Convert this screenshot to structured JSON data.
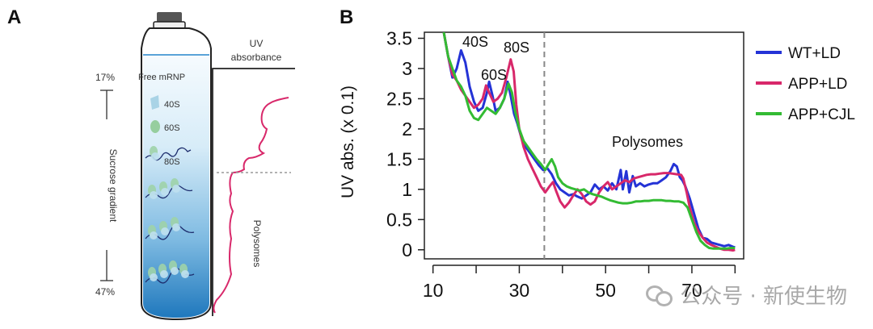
{
  "panelA": {
    "letter": "A",
    "uv_title_line1": "UV",
    "uv_title_line2": "absorbance",
    "top_percent": "17%",
    "bottom_percent": "47%",
    "gradient_label": "Sucrose gradient",
    "free_mrnp": "Free mRNP",
    "label_40s": "40S",
    "label_60s": "60S",
    "label_80s": "80S",
    "polysomes_label": "Polysomes",
    "trace_color": "#d8286a",
    "tube_blue": "#2f86c5"
  },
  "panelB": {
    "letter": "B",
    "ann_40s": "40S",
    "ann_60s": "60S",
    "ann_80s": "80S",
    "ann_polysomes": "Polysomes"
  },
  "watermark": "公众号 · 新使生物",
  "chart_data": {
    "type": "line",
    "title": "",
    "xlabel": "",
    "ylabel": "UV abs. (x 0.1)",
    "xlim": [
      8,
      82
    ],
    "ylim": [
      -0.15,
      3.6
    ],
    "x_ticks": [
      10,
      30,
      50,
      70
    ],
    "y_ticks": [
      0,
      0.5,
      1,
      1.5,
      2,
      2.5,
      3,
      3.5
    ],
    "y_tick_labels": [
      "0",
      "0.5",
      "1",
      "1.5",
      "2",
      "2.5",
      "3",
      "3.5"
    ],
    "vline_x": 35.8,
    "legend_position": "right",
    "series": [
      {
        "name": "WT+LD",
        "color": "#2433d6",
        "points": [
          [
            12.5,
            3.6
          ],
          [
            13.5,
            3.2
          ],
          [
            14.5,
            2.85
          ],
          [
            15.5,
            3.0
          ],
          [
            16.5,
            3.3
          ],
          [
            17.5,
            3.1
          ],
          [
            18.5,
            2.7
          ],
          [
            19.5,
            2.45
          ],
          [
            20.5,
            2.3
          ],
          [
            21.5,
            2.35
          ],
          [
            22.5,
            2.6
          ],
          [
            23.0,
            2.78
          ],
          [
            23.8,
            2.55
          ],
          [
            24.5,
            2.3
          ],
          [
            25.5,
            2.35
          ],
          [
            26.5,
            2.5
          ],
          [
            27.3,
            2.78
          ],
          [
            28.0,
            2.55
          ],
          [
            28.8,
            2.25
          ],
          [
            29.5,
            2.1
          ],
          [
            30.5,
            1.85
          ],
          [
            31.5,
            1.7
          ],
          [
            32.5,
            1.6
          ],
          [
            33.5,
            1.5
          ],
          [
            34.5,
            1.4
          ],
          [
            35.5,
            1.32
          ],
          [
            36.5,
            1.35
          ],
          [
            37.5,
            1.25
          ],
          [
            38.5,
            1.1
          ],
          [
            39.5,
            1.0
          ],
          [
            40.5,
            0.95
          ],
          [
            41.5,
            0.9
          ],
          [
            42.5,
            0.92
          ],
          [
            43.5,
            0.88
          ],
          [
            44.5,
            0.85
          ],
          [
            45.5,
            0.9
          ],
          [
            46.5,
            0.95
          ],
          [
            47.5,
            1.08
          ],
          [
            48.5,
            1.0
          ],
          [
            49.5,
            1.05
          ],
          [
            50.5,
            0.98
          ],
          [
            51.5,
            1.1
          ],
          [
            52.5,
            1.0
          ],
          [
            53.5,
            1.32
          ],
          [
            54.0,
            1.0
          ],
          [
            54.8,
            1.3
          ],
          [
            55.5,
            0.95
          ],
          [
            56.3,
            1.22
          ],
          [
            57.0,
            1.05
          ],
          [
            58.0,
            1.1
          ],
          [
            59.0,
            1.05
          ],
          [
            60.0,
            1.08
          ],
          [
            61.0,
            1.1
          ],
          [
            62.0,
            1.1
          ],
          [
            63.0,
            1.15
          ],
          [
            64.0,
            1.2
          ],
          [
            65.0,
            1.3
          ],
          [
            65.8,
            1.42
          ],
          [
            66.5,
            1.38
          ],
          [
            67.2,
            1.2
          ],
          [
            67.8,
            1.15
          ],
          [
            68.5,
            1.05
          ],
          [
            69.5,
            0.85
          ],
          [
            70.5,
            0.6
          ],
          [
            71.5,
            0.35
          ],
          [
            72.5,
            0.2
          ],
          [
            73.5,
            0.18
          ],
          [
            74.5,
            0.12
          ],
          [
            75.5,
            0.1
          ],
          [
            76.5,
            0.08
          ],
          [
            77.5,
            0.06
          ],
          [
            78.5,
            0.08
          ],
          [
            79.5,
            0.05
          ],
          [
            80.0,
            0.04
          ]
        ]
      },
      {
        "name": "APP+LD",
        "color": "#d8286a",
        "points": [
          [
            12.5,
            3.6
          ],
          [
            13.5,
            3.2
          ],
          [
            14.5,
            2.9
          ],
          [
            15.5,
            2.8
          ],
          [
            16.5,
            2.65
          ],
          [
            17.5,
            2.55
          ],
          [
            18.5,
            2.45
          ],
          [
            19.5,
            2.35
          ],
          [
            20.5,
            2.4
          ],
          [
            21.5,
            2.5
          ],
          [
            22.3,
            2.72
          ],
          [
            23.0,
            2.6
          ],
          [
            24.0,
            2.45
          ],
          [
            25.0,
            2.5
          ],
          [
            26.0,
            2.6
          ],
          [
            27.0,
            2.85
          ],
          [
            28.0,
            3.15
          ],
          [
            28.7,
            2.95
          ],
          [
            29.3,
            2.4
          ],
          [
            30.0,
            2.0
          ],
          [
            31.0,
            1.7
          ],
          [
            32.0,
            1.5
          ],
          [
            33.0,
            1.35
          ],
          [
            34.0,
            1.2
          ],
          [
            35.0,
            1.05
          ],
          [
            36.0,
            0.95
          ],
          [
            37.0,
            1.05
          ],
          [
            37.8,
            1.12
          ],
          [
            38.5,
            0.98
          ],
          [
            39.5,
            0.8
          ],
          [
            40.5,
            0.7
          ],
          [
            41.5,
            0.78
          ],
          [
            42.5,
            0.9
          ],
          [
            43.5,
            1.0
          ],
          [
            44.5,
            0.92
          ],
          [
            45.5,
            0.8
          ],
          [
            46.5,
            0.75
          ],
          [
            47.5,
            0.8
          ],
          [
            48.5,
            0.95
          ],
          [
            49.5,
            1.05
          ],
          [
            50.5,
            1.12
          ],
          [
            51.5,
            1.0
          ],
          [
            52.5,
            1.05
          ],
          [
            53.5,
            1.1
          ],
          [
            54.5,
            1.15
          ],
          [
            55.5,
            1.12
          ],
          [
            56.5,
            1.18
          ],
          [
            57.5,
            1.2
          ],
          [
            58.5,
            1.22
          ],
          [
            59.5,
            1.24
          ],
          [
            60.5,
            1.25
          ],
          [
            61.5,
            1.25
          ],
          [
            62.5,
            1.26
          ],
          [
            63.5,
            1.27
          ],
          [
            64.5,
            1.27
          ],
          [
            65.5,
            1.26
          ],
          [
            66.5,
            1.25
          ],
          [
            67.5,
            1.24
          ],
          [
            68.0,
            1.18
          ],
          [
            68.8,
            0.95
          ],
          [
            69.5,
            0.7
          ],
          [
            70.5,
            0.45
          ],
          [
            71.5,
            0.3
          ],
          [
            72.5,
            0.2
          ],
          [
            73.5,
            0.12
          ],
          [
            74.5,
            0.08
          ],
          [
            75.5,
            0.05
          ],
          [
            76.5,
            0.02
          ],
          [
            77.5,
            0.0
          ],
          [
            78.5,
            0.0
          ],
          [
            79.5,
            -0.01
          ],
          [
            80.0,
            0.0
          ]
        ]
      },
      {
        "name": "APP+CJL",
        "color": "#33bb33",
        "points": [
          [
            12.5,
            3.6
          ],
          [
            13.5,
            3.2
          ],
          [
            14.5,
            3.0
          ],
          [
            15.5,
            2.8
          ],
          [
            16.5,
            2.7
          ],
          [
            17.5,
            2.55
          ],
          [
            18.5,
            2.3
          ],
          [
            19.5,
            2.18
          ],
          [
            20.5,
            2.15
          ],
          [
            21.5,
            2.25
          ],
          [
            22.5,
            2.35
          ],
          [
            23.5,
            2.3
          ],
          [
            24.5,
            2.25
          ],
          [
            25.5,
            2.35
          ],
          [
            26.5,
            2.5
          ],
          [
            27.5,
            2.75
          ],
          [
            28.3,
            2.6
          ],
          [
            29.0,
            2.3
          ],
          [
            30.0,
            2.0
          ],
          [
            31.0,
            1.8
          ],
          [
            32.0,
            1.7
          ],
          [
            33.0,
            1.6
          ],
          [
            34.0,
            1.5
          ],
          [
            35.0,
            1.42
          ],
          [
            36.0,
            1.32
          ],
          [
            36.8,
            1.42
          ],
          [
            37.5,
            1.5
          ],
          [
            38.3,
            1.38
          ],
          [
            39.0,
            1.2
          ],
          [
            40.0,
            1.1
          ],
          [
            41.0,
            1.05
          ],
          [
            42.0,
            1.02
          ],
          [
            43.0,
            1.0
          ],
          [
            44.0,
            0.98
          ],
          [
            45.0,
            1.0
          ],
          [
            46.0,
            0.95
          ],
          [
            47.0,
            0.92
          ],
          [
            48.0,
            0.9
          ],
          [
            49.0,
            0.88
          ],
          [
            50.0,
            0.85
          ],
          [
            51.0,
            0.82
          ],
          [
            52.0,
            0.8
          ],
          [
            53.0,
            0.78
          ],
          [
            54.0,
            0.77
          ],
          [
            55.0,
            0.77
          ],
          [
            56.0,
            0.78
          ],
          [
            57.0,
            0.8
          ],
          [
            58.0,
            0.8
          ],
          [
            59.0,
            0.81
          ],
          [
            60.0,
            0.81
          ],
          [
            61.0,
            0.82
          ],
          [
            62.0,
            0.82
          ],
          [
            63.0,
            0.82
          ],
          [
            64.0,
            0.81
          ],
          [
            65.0,
            0.81
          ],
          [
            66.0,
            0.8
          ],
          [
            67.0,
            0.8
          ],
          [
            68.0,
            0.78
          ],
          [
            69.0,
            0.7
          ],
          [
            70.0,
            0.5
          ],
          [
            71.0,
            0.3
          ],
          [
            72.0,
            0.15
          ],
          [
            73.0,
            0.08
          ],
          [
            74.0,
            0.03
          ],
          [
            75.0,
            0.02
          ],
          [
            76.0,
            0.02
          ],
          [
            77.0,
            0.02
          ],
          [
            78.0,
            0.02
          ],
          [
            79.0,
            0.03
          ],
          [
            80.0,
            0.03
          ]
        ]
      }
    ]
  }
}
